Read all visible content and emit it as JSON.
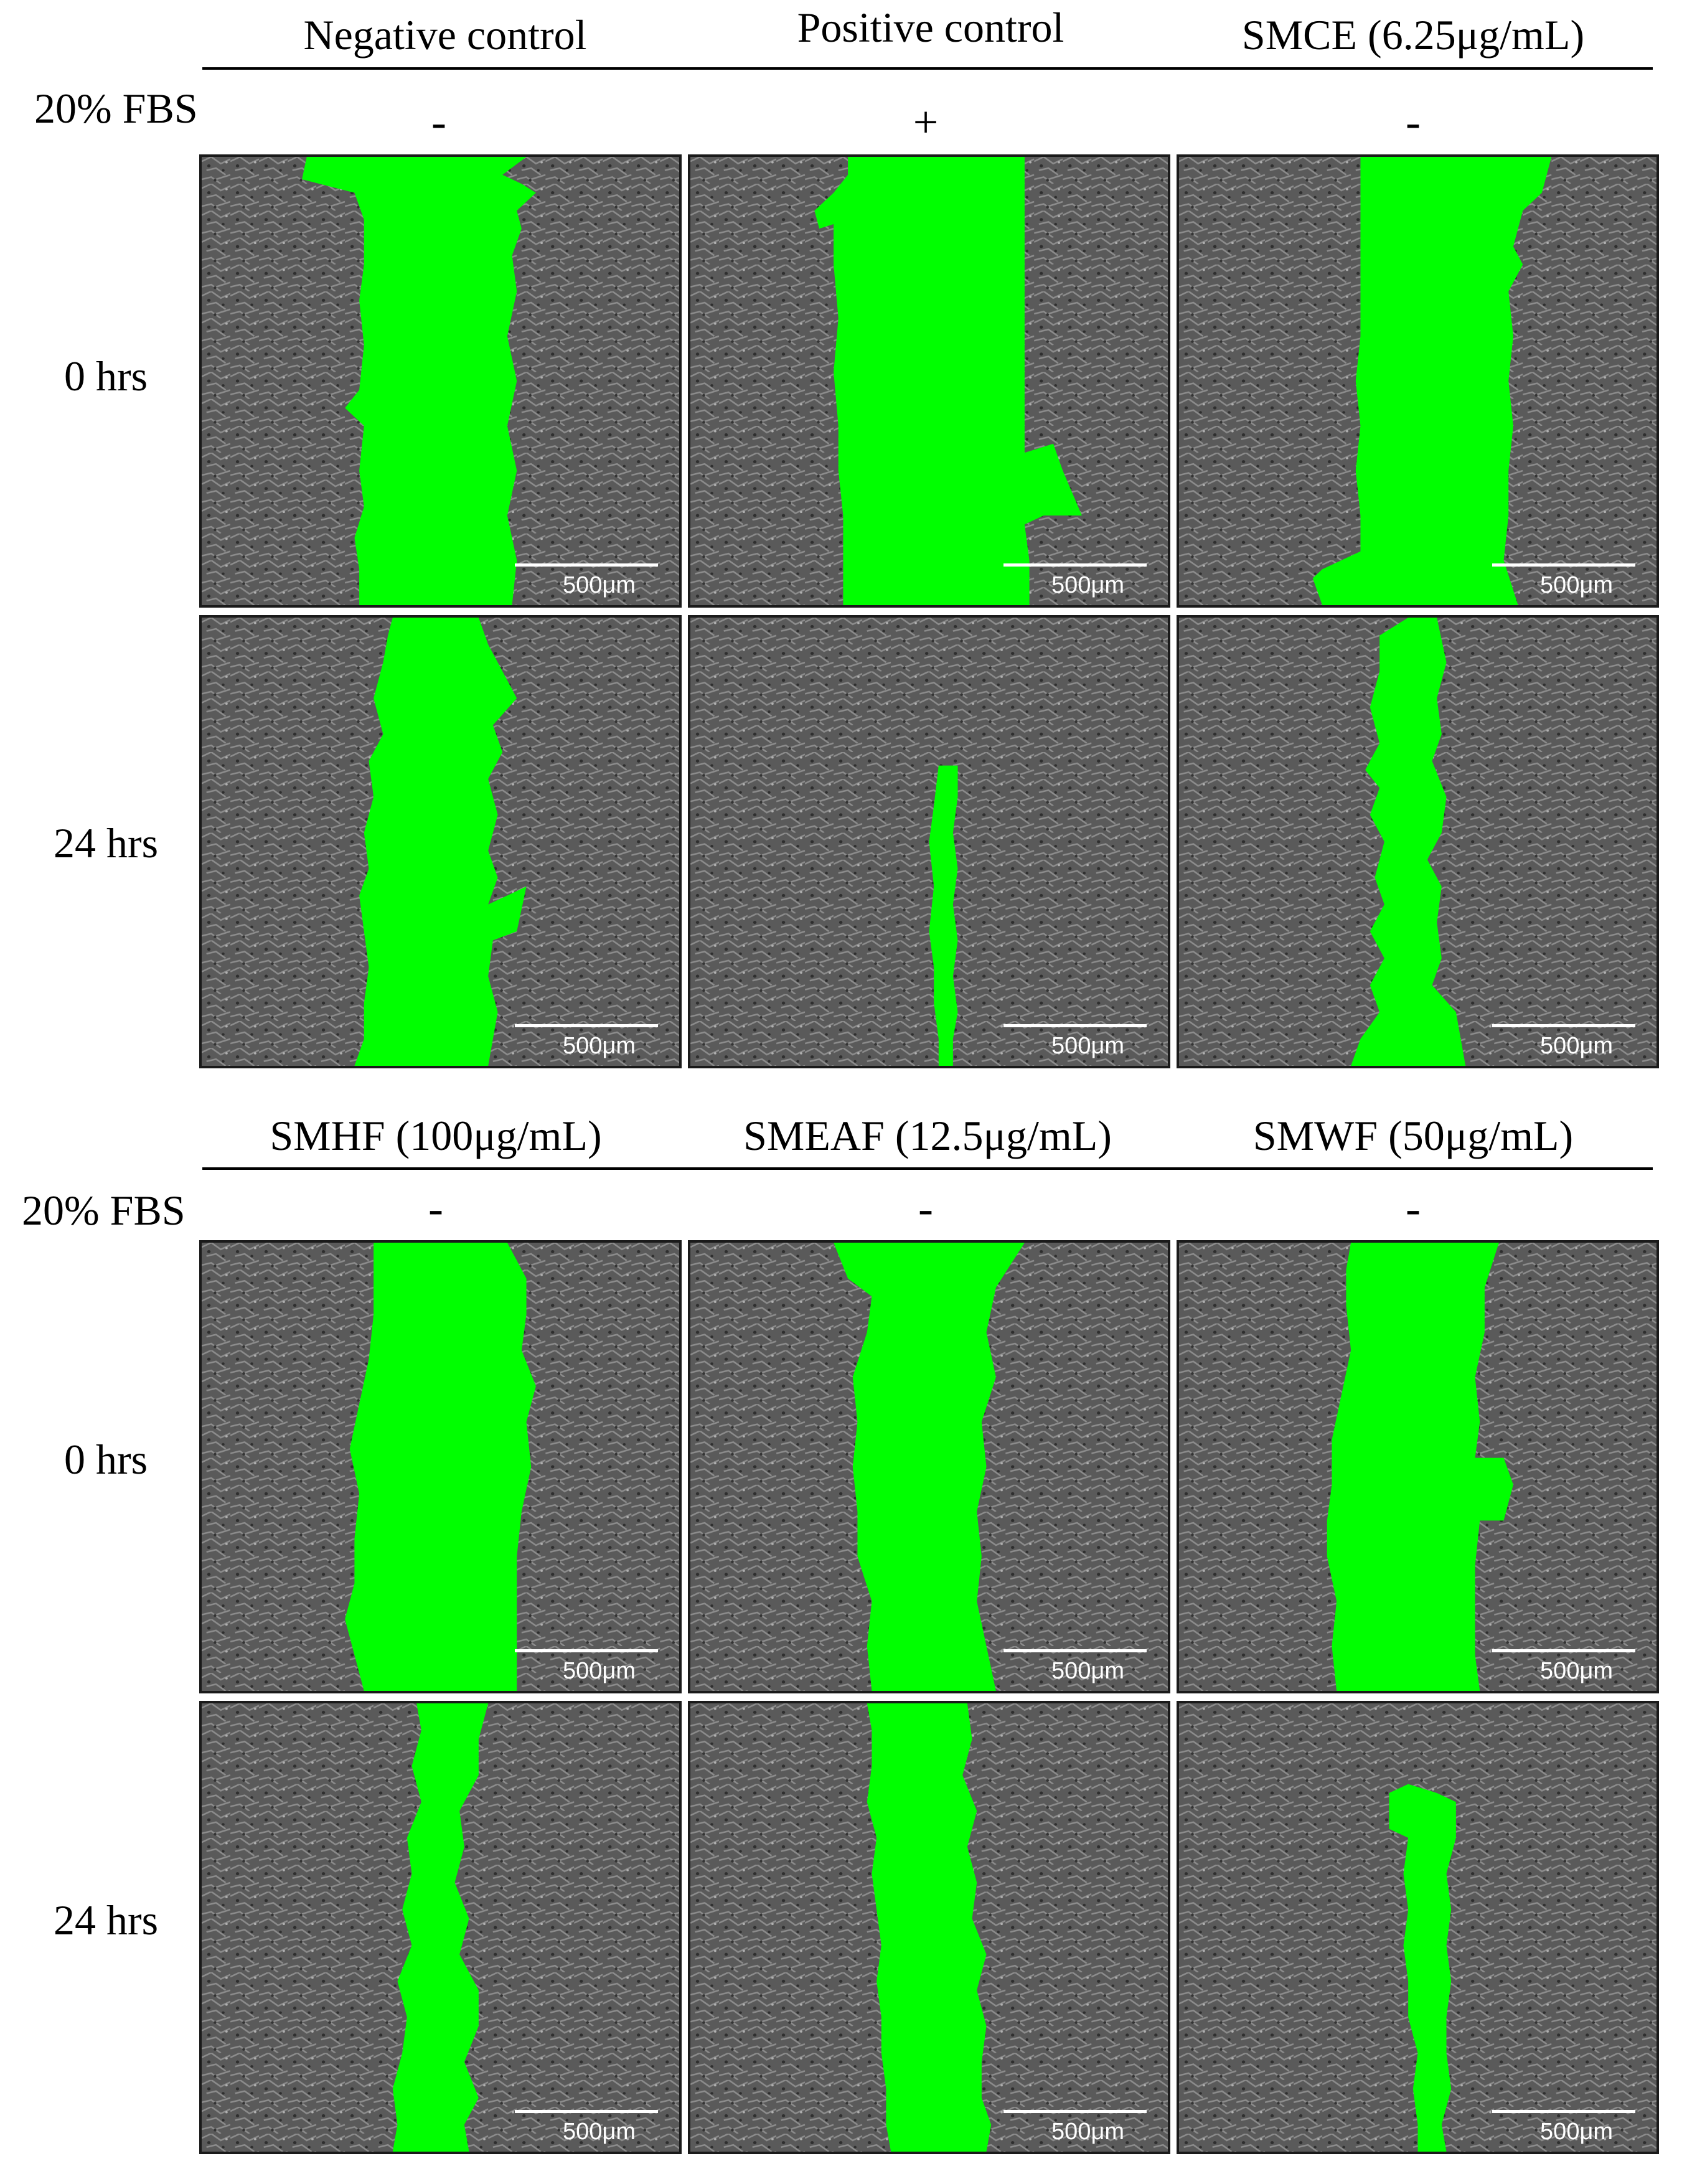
{
  "top": {
    "columns": [
      {
        "title": "Negative control",
        "fbs": "-"
      },
      {
        "title": "Positive control",
        "fbs": "+"
      },
      {
        "title": "SMCE (6.25μg/mL)",
        "fbs": "-"
      }
    ],
    "fbs_label": "20% FBS",
    "rows": [
      {
        "label": "0 hrs"
      },
      {
        "label": "24 hrs"
      }
    ]
  },
  "bottom": {
    "columns": [
      {
        "title": "SMHF (100μg/mL)",
        "fbs": "-"
      },
      {
        "title": "SMEAF (12.5μg/mL)",
        "fbs": "-"
      },
      {
        "title": "SMWF (50μg/mL)",
        "fbs": "-"
      }
    ],
    "fbs_label": "20% FBS",
    "rows": [
      {
        "label": "0 hrs"
      },
      {
        "label": "24 hrs"
      }
    ]
  },
  "scale_bar_label": "500μm",
  "colors": {
    "wound_area": "#00ff00",
    "cells": "#5f5f5f"
  }
}
